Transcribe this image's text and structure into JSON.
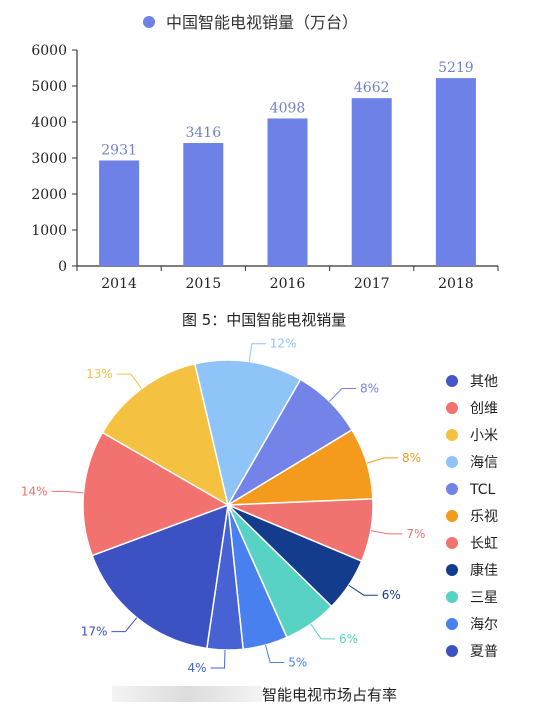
{
  "chart_data": [
    {
      "type": "bar",
      "title": "中国智能电视销量（万台）",
      "legend": "top",
      "categories": [
        "2014",
        "2015",
        "2016",
        "2017",
        "2018"
      ],
      "values": [
        2931,
        3416,
        4098,
        4662,
        5219
      ],
      "ylim": [
        0,
        6000
      ],
      "yticks": [
        0,
        1000,
        2000,
        3000,
        4000,
        5000,
        6000
      ],
      "grid": false,
      "color": "#6d81e6",
      "caption": "图 5：中国智能电视销量"
    },
    {
      "type": "pie",
      "caption": "智能电视市场占有率",
      "legend": "right",
      "slices": [
        {
          "name": "其他",
          "value": 8,
          "label": "8%",
          "color": "#7383e8"
        },
        {
          "name": "创维",
          "value": 8,
          "label": "8%",
          "color": "#f49a1c"
        },
        {
          "name": "小米",
          "value": 7,
          "label": "7%",
          "color": "#f0736f"
        },
        {
          "name": "海信",
          "value": 6,
          "label": "6%",
          "color": "#133c8c"
        },
        {
          "name": "TCL",
          "value": 6,
          "label": "6%",
          "color": "#57d2c4"
        },
        {
          "name": "乐视",
          "value": 5,
          "label": "5%",
          "color": "#4980f0"
        },
        {
          "name": "长虹",
          "value": 4,
          "label": "4%",
          "color": "#4762d2"
        },
        {
          "name": "康佳",
          "value": 17,
          "label": "17%",
          "color": "#3d52c2"
        },
        {
          "name": "三星",
          "value": 14,
          "label": "14%",
          "color": "#f2726f"
        },
        {
          "name": "海尔",
          "value": 13,
          "label": "13%",
          "color": "#f5c141"
        },
        {
          "name": "夏普",
          "value": 12,
          "label": "12%",
          "color": "#8ec4f7"
        }
      ],
      "legend_colors": [
        "#4358c8",
        "#f0736f",
        "#f5c141",
        "#8ec4f7",
        "#7383e8",
        "#f49a1c",
        "#f2726f",
        "#133c8c",
        "#57d2c4",
        "#4980f0",
        "#3d52c2"
      ]
    }
  ]
}
